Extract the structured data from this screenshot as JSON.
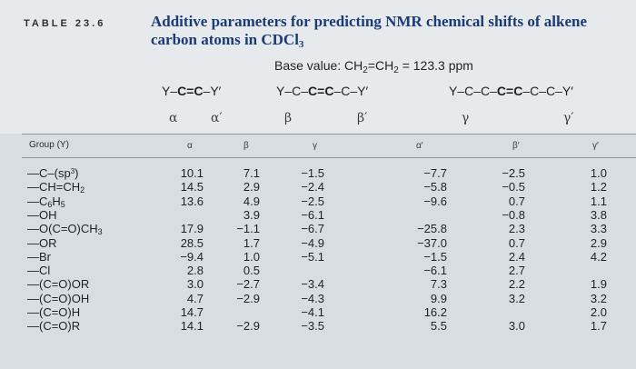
{
  "table_label": "TABLE 23.6",
  "title_line1": "Additive parameters for predicting NMR chemical shifts of alkene",
  "title_line2": "carbon atoms in CDCl",
  "title_sub": "3",
  "base_value": {
    "prefix": "Base value: CH",
    "mid": "=CH",
    "suffix": " = 123.3 ppm",
    "sub": "2"
  },
  "structures": {
    "s1": {
      "pre": "Y–",
      "bold": "C=C",
      "post": "–Y′"
    },
    "s2": {
      "pre": "Y–C–",
      "bold": "C=C",
      "post": "–C–Y′"
    },
    "s3": {
      "pre": "Y–C–C–",
      "bold": "C=C",
      "post": "–C–C–Y′"
    }
  },
  "greek_labels": [
    "α",
    "α′",
    "β",
    "β′",
    "γ",
    "γ′"
  ],
  "column_headers": {
    "group": "Group (Y)",
    "cols": [
      "α",
      "β",
      "γ",
      "α′",
      "β′",
      "γ′"
    ]
  },
  "rows": [
    {
      "g": {
        "base": "—C–(sp",
        "sup": "3",
        "end": ")"
      },
      "v": [
        "10.1",
        "7.1",
        "−1.5",
        "−7.7",
        "−2.5",
        "1.0"
      ]
    },
    {
      "g": {
        "base": "—CH=CH",
        "sub": "2",
        "end": ""
      },
      "v": [
        "14.5",
        "2.9",
        "−2.4",
        "−5.8",
        "−0.5",
        "1.2"
      ]
    },
    {
      "g": {
        "base": "—C",
        "sub": "6",
        "mid": "H",
        "sub2": "5",
        "end": ""
      },
      "v": [
        "13.6",
        "4.9",
        "−2.5",
        "−9.6",
        "0.7",
        "1.1"
      ]
    },
    {
      "g": {
        "base": "—OH",
        "end": ""
      },
      "v": [
        "",
        "3.9",
        "−6.1",
        "",
        "−0.8",
        "3.8"
      ]
    },
    {
      "g": {
        "base": "—O(C=O)CH",
        "sub": "3",
        "end": ""
      },
      "v": [
        "17.9",
        "−1.1",
        "−6.7",
        "−25.8",
        "2.3",
        "3.3"
      ]
    },
    {
      "g": {
        "base": "—OR",
        "end": ""
      },
      "v": [
        "28.5",
        "1.7",
        "−4.9",
        "−37.0",
        "0.7",
        "2.9"
      ]
    },
    {
      "g": {
        "base": "—Br",
        "end": ""
      },
      "v": [
        "−9.4",
        "1.0",
        "−5.1",
        "−1.5",
        "2.4",
        "4.2"
      ]
    },
    {
      "g": {
        "base": "—Cl",
        "end": ""
      },
      "v": [
        "2.8",
        "0.5",
        "",
        "−6.1",
        "2.7",
        ""
      ]
    },
    {
      "g": {
        "base": "—(C=O)OR",
        "end": ""
      },
      "v": [
        "3.0",
        "−2.7",
        "−3.4",
        "7.3",
        "2.2",
        "1.9"
      ]
    },
    {
      "g": {
        "base": "—(C=O)OH",
        "end": ""
      },
      "v": [
        "4.7",
        "−2.9",
        "−4.3",
        "9.9",
        "3.2",
        "3.2"
      ]
    },
    {
      "g": {
        "base": "—(C=O)H",
        "end": ""
      },
      "v": [
        "14.7",
        "",
        "−4.1",
        "16.2",
        "",
        "2.0"
      ]
    },
    {
      "g": {
        "base": "—(C=O)R",
        "end": ""
      },
      "v": [
        "14.1",
        "−2.9",
        "−3.5",
        "5.5",
        "3.0",
        "1.7"
      ]
    }
  ]
}
